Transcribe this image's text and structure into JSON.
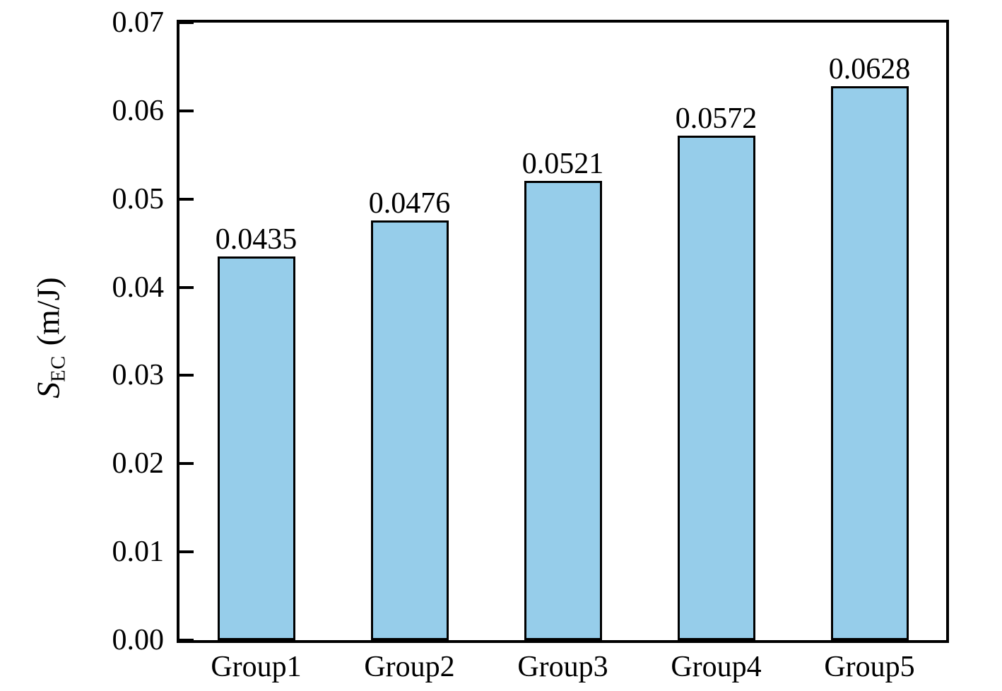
{
  "chart_data": {
    "type": "bar",
    "categories": [
      "Group1",
      "Group2",
      "Group3",
      "Group4",
      "Group5"
    ],
    "values": [
      0.0435,
      0.0476,
      0.0521,
      0.0572,
      0.0628
    ],
    "value_labels": [
      "0.0435",
      "0.0476",
      "0.0521",
      "0.0572",
      "0.0628"
    ],
    "title": "",
    "xlabel": "",
    "ylabel": {
      "symbol": "S",
      "subscript": "EC",
      "unit": "(m/J)"
    },
    "yticks": [
      "0.00",
      "0.01",
      "0.02",
      "0.03",
      "0.04",
      "0.05",
      "0.06",
      "0.07"
    ],
    "ylim": [
      0,
      0.07
    ],
    "grid": false,
    "legend": "none",
    "bar_color": "#96CDEA",
    "bar_border_color": "#000000",
    "axis_color": "#000000",
    "text_color": "#000000",
    "background_color": "#FFFFFF"
  }
}
